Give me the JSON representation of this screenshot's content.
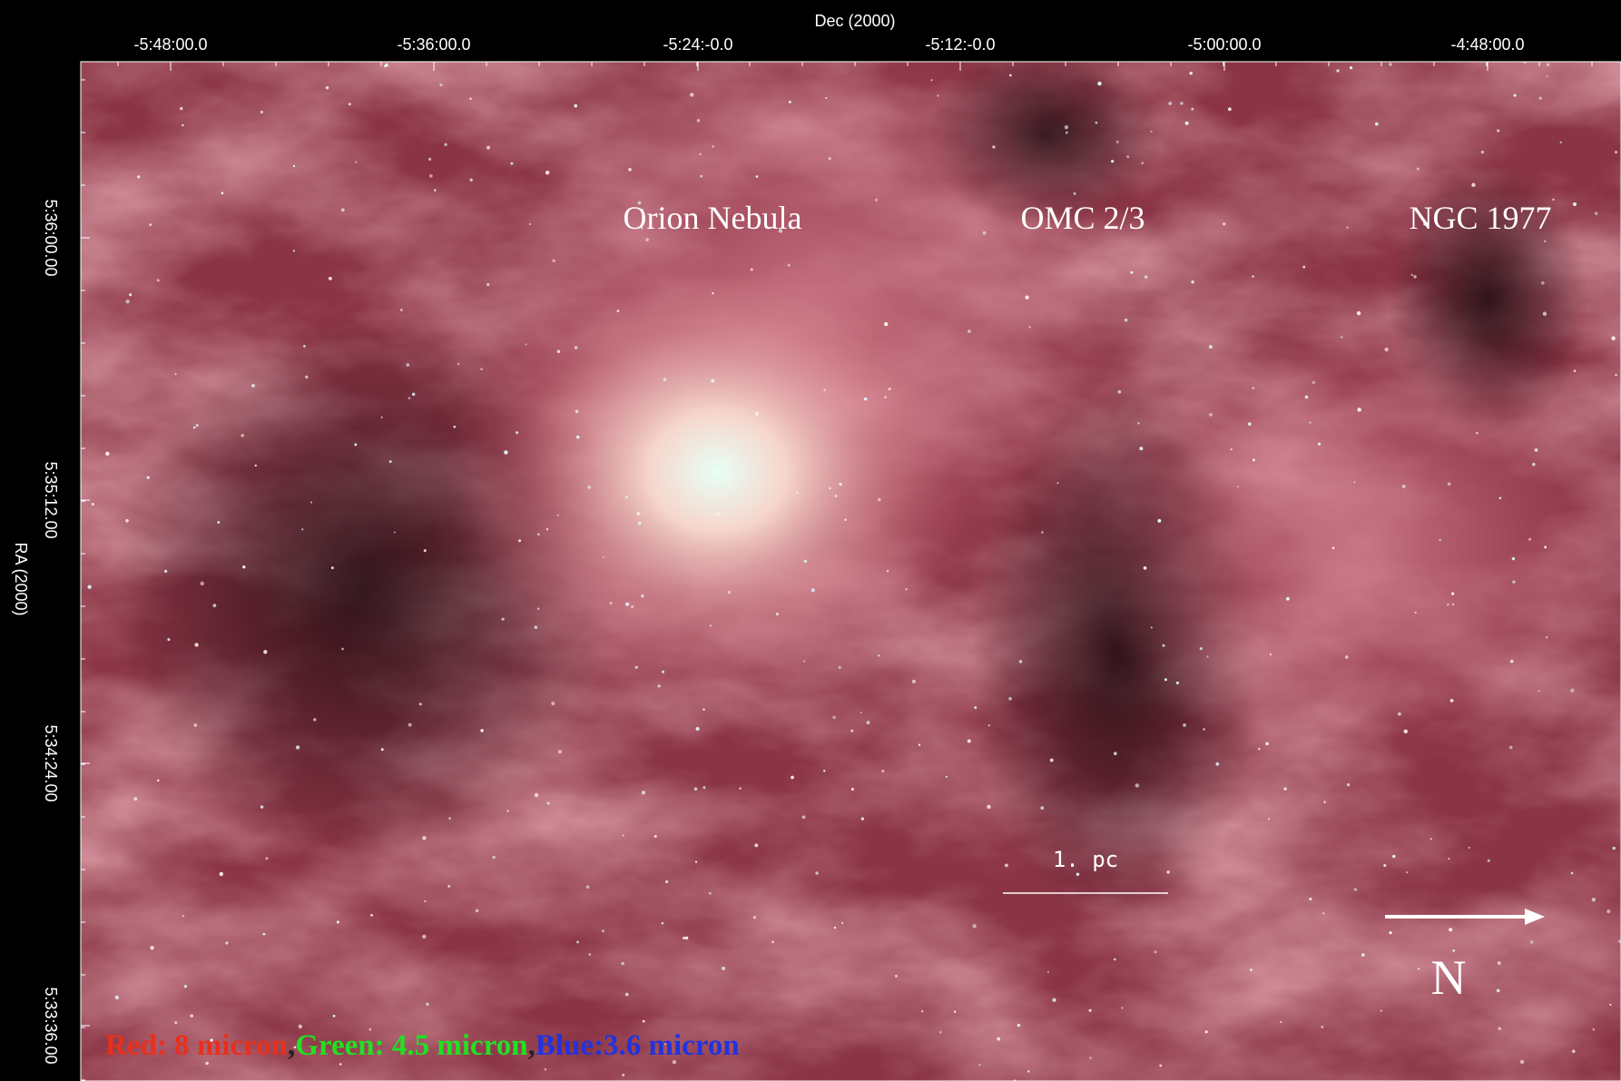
{
  "x_axis": {
    "label": "Dec (2000)",
    "ticks": [
      "-5:48:00.0",
      "-5:36:00.0",
      "-5:24:-0.0",
      "-5:12:-0.0",
      "-5:00:00.0",
      "-4:48:00.0"
    ]
  },
  "y_axis": {
    "label": "RA (2000)",
    "ticks": [
      "5:36:00.00",
      "5:35:12.00",
      "5:34:24.00",
      "5:33:36.00"
    ]
  },
  "annotations": [
    "Orion Nebula",
    "OMC 2/3",
    "NGC 1977"
  ],
  "scale_bar": {
    "label": "1. pc"
  },
  "compass": {
    "label": "N"
  },
  "legend": {
    "items": [
      {
        "text": "Red: 8 micron",
        "color": "#e8301c"
      },
      {
        "text": "Green: 4.5 micron",
        "color": "#22e022"
      },
      {
        "text": "Blue:3.6 micron",
        "color": "#2233dd"
      }
    ],
    "separator": ","
  }
}
